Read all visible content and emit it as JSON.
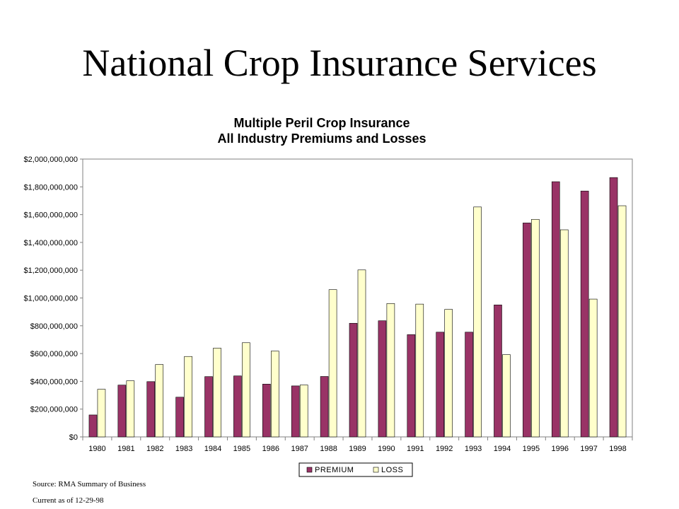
{
  "slide": {
    "title": "National Crop Insurance Services"
  },
  "chart_data": {
    "type": "bar",
    "title_lines": [
      "Multiple Peril Crop Insurance",
      "All Industry Premiums and Losses"
    ],
    "categories": [
      "1980",
      "1981",
      "1982",
      "1983",
      "1984",
      "1985",
      "1986",
      "1987",
      "1988",
      "1989",
      "1990",
      "1991",
      "1992",
      "1993",
      "1994",
      "1995",
      "1996",
      "1997",
      "1998"
    ],
    "series": [
      {
        "name": "PREMIUM",
        "color": "#993366",
        "values": [
          158000000,
          373000000,
          398000000,
          286000000,
          434000000,
          439000000,
          380000000,
          367000000,
          435000000,
          818000000,
          836000000,
          736000000,
          754000000,
          754000000,
          950000000,
          1540000000,
          1837000000,
          1770000000,
          1867000000
        ]
      },
      {
        "name": "LOSS",
        "color": "#FFFFCC",
        "values": [
          343000000,
          404000000,
          521000000,
          579000000,
          639000000,
          678000000,
          618000000,
          374000000,
          1060000000,
          1202000000,
          960000000,
          956000000,
          918000000,
          1655000000,
          592000000,
          1566000000,
          1491000000,
          992000000,
          1664000000
        ]
      }
    ],
    "ylim": [
      0,
      2000000000
    ],
    "yticks": [
      0,
      200000000,
      400000000,
      600000000,
      800000000,
      1000000000,
      1200000000,
      1400000000,
      1600000000,
      1800000000,
      2000000000
    ],
    "ytick_labels": [
      "$0",
      "$200,000,000",
      "$400,000,000",
      "$600,000,000",
      "$800,000,000",
      "$1,000,000,000",
      "$1,200,000,000",
      "$1,400,000,000",
      "$1,600,000,000",
      "$1,800,000,000",
      "$2,000,000,000"
    ],
    "grid": false,
    "legend_position": "bottom"
  },
  "footnotes": {
    "source": "Source:  RMA Summary of Business",
    "current": "Current as of 12-29-98"
  }
}
